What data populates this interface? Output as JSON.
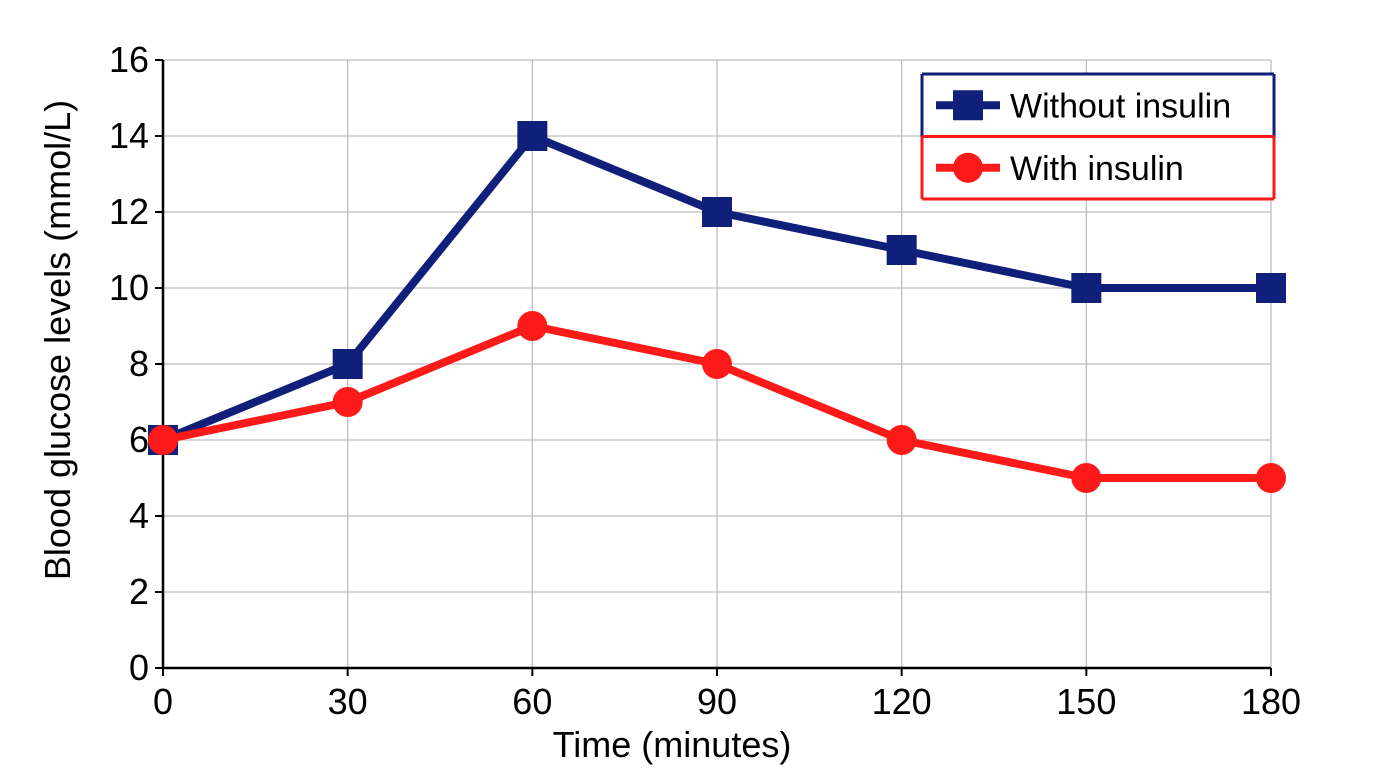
{
  "chart_data": {
    "type": "line",
    "xlabel": "Time (minutes)",
    "ylabel": "Blood glucose levels (mmol/L)",
    "x": [
      0,
      30,
      60,
      90,
      120,
      150,
      180
    ],
    "xlim": [
      0,
      180
    ],
    "ylim": [
      0,
      16
    ],
    "xticks": [
      "0",
      "30",
      "60",
      "90",
      "120",
      "150",
      "180"
    ],
    "yticks": [
      "0",
      "2",
      "4",
      "6",
      "8",
      "10",
      "12",
      "14",
      "16"
    ],
    "grid": true,
    "legend_position": "top-right",
    "series": [
      {
        "name": "Without insulin",
        "values": [
          6,
          8,
          14,
          12,
          11,
          10,
          10
        ],
        "color": "#0f1f7a",
        "marker": "square"
      },
      {
        "name": "With insulin",
        "values": [
          6,
          7,
          9,
          8,
          6,
          5,
          5
        ],
        "color": "#ff1a1a",
        "marker": "circle"
      }
    ]
  }
}
